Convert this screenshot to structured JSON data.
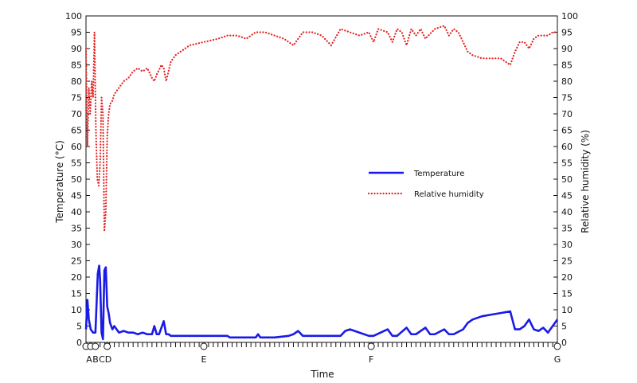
{
  "chart_data": {
    "type": "line",
    "xlabel": "Time",
    "ylabel_left": "Temperature (°C)",
    "ylabel_right": "Relative humidity (%)",
    "ylim": [
      0,
      100
    ],
    "yticks": [
      0,
      5,
      10,
      15,
      20,
      25,
      30,
      35,
      40,
      45,
      50,
      55,
      60,
      65,
      70,
      75,
      80,
      85,
      90,
      95,
      100
    ],
    "xlim": [
      0,
      100
    ],
    "x_markers": [
      {
        "label": "A",
        "x": 0
      },
      {
        "label": "B",
        "x": 1
      },
      {
        "label": "C",
        "x": 2
      },
      {
        "label": "D",
        "x": 4.5
      },
      {
        "label": "E",
        "x": 25
      },
      {
        "label": "F",
        "x": 60.5
      },
      {
        "label": "G",
        "x": 100
      }
    ],
    "legend_position": "center-right",
    "series": [
      {
        "name": "Temperature",
        "color": "#1a1ae6",
        "style": "solid",
        "axis": "left",
        "x": [
          0,
          0.3,
          0.6,
          1,
          1.5,
          2,
          2.5,
          2.8,
          3.0,
          3.3,
          3.6,
          3.9,
          4.2,
          4.5,
          4.8,
          5.1,
          5.6,
          6,
          6.5,
          7,
          8,
          9,
          10,
          11,
          12,
          13,
          14,
          14.5,
          15,
          15.5,
          16.5,
          17,
          17.5,
          18,
          19,
          20,
          22,
          25,
          28,
          30,
          30.5,
          31,
          33,
          36,
          36.5,
          37,
          40,
          43,
          44,
          45,
          46,
          50,
          54,
          55,
          56,
          60,
          60.5,
          61,
          64,
          65,
          66,
          68,
          69,
          70,
          72,
          73,
          74,
          76,
          77,
          78,
          80,
          81,
          82,
          84,
          86,
          88,
          90,
          91,
          92,
          93,
          94,
          95,
          96,
          97,
          98,
          99,
          100
        ],
        "values": [
          4,
          13,
          7,
          4,
          3,
          3,
          21,
          23.5,
          19,
          3,
          1,
          22,
          23,
          11,
          9,
          6,
          4,
          5,
          4,
          3,
          3.5,
          3,
          3,
          2.5,
          3,
          2.5,
          2.5,
          5,
          2.5,
          2.5,
          6.5,
          2.5,
          2.5,
          2,
          2,
          2,
          2,
          2,
          2,
          2,
          1.5,
          1.5,
          1.5,
          1.5,
          2.5,
          1.5,
          1.5,
          2,
          2.5,
          3.5,
          2,
          2,
          2,
          3.5,
          4,
          2,
          2,
          2,
          4,
          2,
          2,
          4.5,
          2.5,
          2.5,
          4.5,
          2.5,
          2.5,
          4,
          2.5,
          2.5,
          4,
          6,
          7,
          8,
          8.5,
          9,
          9.5,
          4,
          4,
          5,
          7,
          4,
          3.5,
          4.5,
          3,
          5,
          7
        ]
      },
      {
        "name": "Relative humidity",
        "color": "#e62020",
        "style": "dotted",
        "axis": "right",
        "x": [
          0,
          0.3,
          0.6,
          0.9,
          1.2,
          1.5,
          1.8,
          2.1,
          2.4,
          2.7,
          3.0,
          3.3,
          3.6,
          3.9,
          4.2,
          4.5,
          4.8,
          5.1,
          5.6,
          6,
          7,
          8,
          9,
          10,
          11,
          12,
          13,
          14,
          14.5,
          15,
          16,
          16.5,
          17,
          18,
          19,
          20,
          22,
          25,
          28,
          30,
          32,
          34,
          36,
          38,
          40,
          42,
          44,
          46,
          48,
          50,
          52,
          54,
          56,
          58,
          60,
          61,
          62,
          64,
          65,
          66,
          67,
          68,
          69,
          70,
          71,
          72,
          74,
          76,
          77,
          78,
          79,
          80,
          81,
          82,
          84,
          86,
          88,
          90,
          91,
          92,
          93,
          94,
          95,
          96,
          97,
          98,
          99,
          100
        ],
        "values": [
          90,
          60,
          78,
          70,
          80,
          75,
          95,
          65,
          50,
          48,
          55,
          75,
          70,
          34,
          40,
          63,
          70,
          73,
          74,
          76,
          78,
          80,
          81,
          83,
          84,
          83,
          84,
          81,
          80,
          82,
          85,
          84,
          80,
          86,
          88,
          89,
          91,
          92,
          93,
          94,
          94,
          93,
          95,
          95,
          94,
          93,
          91,
          95,
          95,
          94,
          91,
          96,
          95,
          94,
          95,
          92,
          96,
          95,
          92,
          96,
          95,
          91,
          96,
          94,
          96,
          93,
          96,
          97,
          94,
          96,
          95,
          92,
          89,
          88,
          87,
          87,
          87,
          85,
          89,
          92,
          92,
          90,
          93,
          94,
          94,
          94,
          95,
          95
        ]
      }
    ]
  }
}
